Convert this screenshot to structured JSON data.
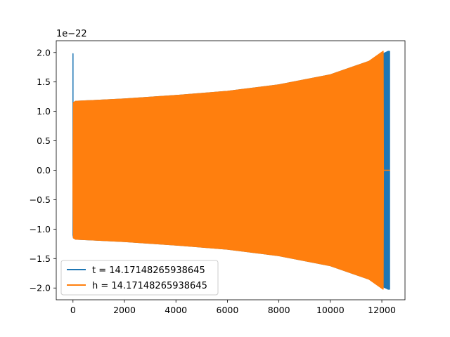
{
  "chart_data": {
    "type": "line",
    "title": "",
    "xlabel": "",
    "ylabel": "",
    "y_offset_label": "1e−22",
    "xlim": [
      -650,
      12900
    ],
    "ylim": [
      -2.2,
      2.2
    ],
    "x_ticks": [
      0,
      2000,
      4000,
      6000,
      8000,
      10000,
      12000
    ],
    "x_tick_labels": [
      "0",
      "2000",
      "4000",
      "6000",
      "8000",
      "10000",
      "12000"
    ],
    "y_ticks": [
      2.0,
      1.5,
      1.0,
      0.5,
      0.0,
      -0.5,
      -1.0,
      -1.5,
      -2.0
    ],
    "y_tick_labels": [
      "2.0",
      "1.5",
      "1.0",
      "0.5",
      "0.0",
      "−0.5",
      "−1.0",
      "−1.5",
      "−2.0"
    ],
    "grid": false,
    "legend_position": "lower-left",
    "series": [
      {
        "name": "t = 14.17148265938645",
        "color": "#1f77b4",
        "description_points": {
          "x": [
            0,
            0,
            20,
            100,
            2000,
            4000,
            6000,
            8000,
            10000,
            11500,
            12050,
            12250,
            12300
          ],
          "upper_envelope": [
            1.98,
            1.1,
            1.15,
            1.17,
            1.21,
            1.27,
            1.34,
            1.45,
            1.62,
            1.85,
            1.98,
            2.02,
            2.02
          ],
          "lower_envelope": [
            -0.3,
            -1.1,
            -1.15,
            -1.17,
            -1.21,
            -1.27,
            -1.34,
            -1.45,
            -1.62,
            -1.85,
            -1.98,
            -2.02,
            -2.02
          ]
        }
      },
      {
        "name": "h = 14.17148265938645",
        "color": "#ff7f0e",
        "description_points": {
          "x": [
            0,
            20,
            100,
            2000,
            4000,
            6000,
            8000,
            10000,
            11500,
            12050,
            12060,
            12300
          ],
          "upper_envelope": [
            -0.28,
            1.15,
            1.17,
            1.21,
            1.27,
            1.34,
            1.45,
            1.62,
            1.85,
            2.02,
            0.0,
            0.0
          ],
          "lower_envelope": [
            -0.28,
            -1.15,
            -1.17,
            -1.21,
            -1.27,
            -1.34,
            -1.45,
            -1.62,
            -1.85,
            -2.02,
            0.0,
            0.0
          ]
        }
      }
    ]
  }
}
